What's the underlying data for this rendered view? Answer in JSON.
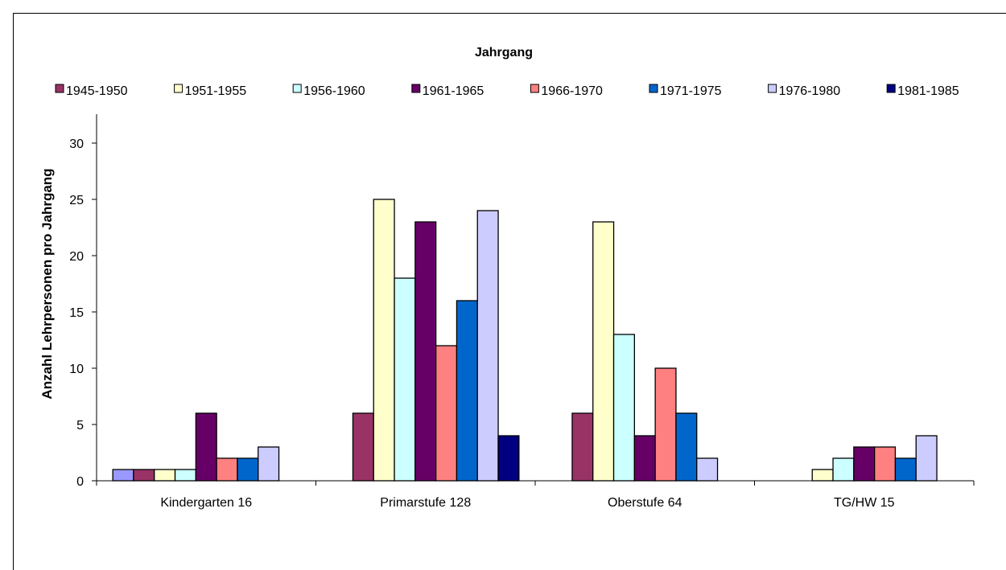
{
  "chart_data": {
    "type": "bar",
    "title": "Jahrgang",
    "xlabel": "",
    "ylabel": "Anzahl Lehrpersonen pro Jahrgang",
    "ylim": [
      0,
      30
    ],
    "yticks": [
      0,
      5,
      10,
      15,
      20,
      25,
      30
    ],
    "grid": false,
    "legend_position": "top",
    "categories": [
      "Kindergarten 16",
      "Primarstufe 128",
      "Oberstufe 64",
      "TG/HW 15"
    ],
    "series": [
      {
        "name": "",
        "color": "#9999FF",
        "values": [
          1,
          0,
          0,
          0
        ]
      },
      {
        "name": "1945-1950",
        "color": "#993366",
        "values": [
          1,
          6,
          6,
          0
        ]
      },
      {
        "name": "1951-1955",
        "color": "#FFFFCC",
        "values": [
          1,
          25,
          23,
          1
        ]
      },
      {
        "name": "1956-1960",
        "color": "#CCFFFF",
        "values": [
          1,
          18,
          13,
          2
        ]
      },
      {
        "name": "1961-1965",
        "color": "#660066",
        "values": [
          6,
          23,
          4,
          3
        ]
      },
      {
        "name": "1966-1970",
        "color": "#FF8080",
        "values": [
          2,
          12,
          10,
          3
        ]
      },
      {
        "name": "1971-1975",
        "color": "#0066CC",
        "values": [
          2,
          16,
          6,
          2
        ]
      },
      {
        "name": "1976-1980",
        "color": "#CCCCFF",
        "values": [
          3,
          24,
          2,
          4
        ]
      },
      {
        "name": "1981-1985",
        "color": "#000080",
        "values": [
          0,
          4,
          0,
          0
        ]
      }
    ]
  }
}
